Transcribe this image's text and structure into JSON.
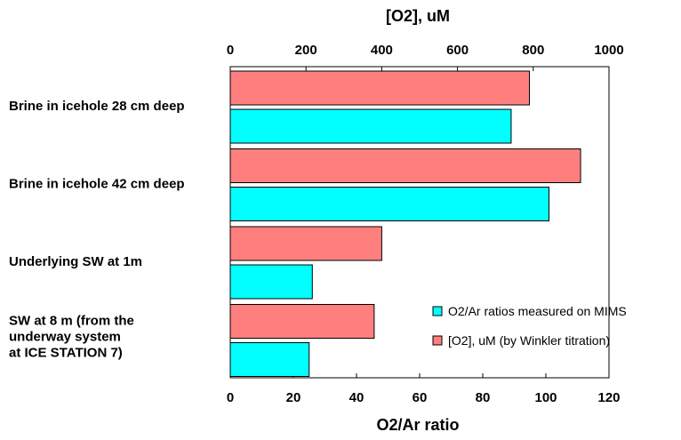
{
  "chart_data": {
    "type": "bar",
    "orientation": "horizontal",
    "categories": [
      [
        "Brine in icehole 28 cm deep"
      ],
      [
        "Brine in icehole 42 cm deep"
      ],
      [
        "Underlying SW at 1m"
      ],
      [
        "SW at 8 m (from the",
        "underway system",
        "at ICE STATION 7)"
      ]
    ],
    "series": [
      {
        "name": "[O2], uM (by Winkler titration)",
        "axis": "top",
        "color": "#ff7f7f",
        "values": [
          790,
          925,
          400,
          380
        ]
      },
      {
        "name": "O2/Ar ratios measured on MIMS",
        "axis": "bottom",
        "color": "#00ffff",
        "values": [
          89,
          101,
          26,
          25
        ]
      }
    ],
    "top_axis": {
      "label": "[O2], uM",
      "ticks": [
        "0",
        "200",
        "400",
        "600",
        "800",
        "1000"
      ],
      "range": [
        0,
        1000
      ]
    },
    "bottom_axis": {
      "label": "O2/Ar ratio",
      "ticks": [
        "0",
        "20",
        "40",
        "60",
        "80",
        "100",
        "120"
      ],
      "range": [
        0,
        120
      ]
    },
    "legend_position": "bottom-right",
    "grid": false
  }
}
